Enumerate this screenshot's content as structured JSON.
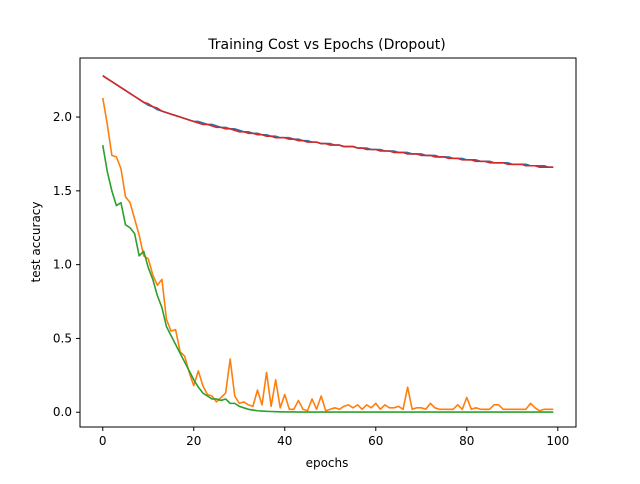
{
  "chart_data": {
    "type": "line",
    "title": "Training Cost vs Epochs (Dropout)",
    "xlabel": "epochs",
    "ylabel": "test accuracy",
    "xlim": [
      -5,
      104
    ],
    "ylim": [
      -0.1,
      2.4
    ],
    "xticks": [
      0,
      20,
      40,
      60,
      80,
      100
    ],
    "yticks": [
      0.0,
      0.5,
      1.0,
      1.5,
      2.0
    ],
    "xtick_labels": [
      "0",
      "20",
      "40",
      "60",
      "80",
      "100"
    ],
    "ytick_labels": [
      "0.0",
      "0.5",
      "1.0",
      "1.5",
      "2.0"
    ],
    "grid": false,
    "legend": "none",
    "colors": [
      "#1f77b4",
      "#ff7f0e",
      "#2ca02c",
      "#d62728"
    ],
    "x": [
      0,
      1,
      2,
      3,
      4,
      5,
      6,
      7,
      8,
      9,
      10,
      11,
      12,
      13,
      14,
      15,
      16,
      17,
      18,
      19,
      20,
      21,
      22,
      23,
      24,
      25,
      26,
      27,
      28,
      29,
      30,
      31,
      32,
      33,
      34,
      35,
      36,
      37,
      38,
      39,
      40,
      41,
      42,
      43,
      44,
      45,
      46,
      47,
      48,
      49,
      50,
      51,
      52,
      53,
      54,
      55,
      56,
      57,
      58,
      59,
      60,
      61,
      62,
      63,
      64,
      65,
      66,
      67,
      68,
      69,
      70,
      71,
      72,
      73,
      74,
      75,
      76,
      77,
      78,
      79,
      80,
      81,
      82,
      83,
      84,
      85,
      86,
      87,
      88,
      89,
      90,
      91,
      92,
      93,
      94,
      95,
      96,
      97,
      98,
      99
    ],
    "series": [
      {
        "values": [
          2.28,
          2.26,
          2.24,
          2.22,
          2.2,
          2.18,
          2.16,
          2.14,
          2.12,
          2.1,
          2.08,
          2.07,
          2.05,
          2.04,
          2.03,
          2.02,
          2.01,
          2.0,
          1.99,
          1.98,
          1.97,
          1.97,
          1.96,
          1.95,
          1.95,
          1.94,
          1.93,
          1.93,
          1.92,
          1.92,
          1.91,
          1.9,
          1.9,
          1.89,
          1.89,
          1.88,
          1.88,
          1.87,
          1.87,
          1.86,
          1.86,
          1.86,
          1.85,
          1.85,
          1.84,
          1.84,
          1.83,
          1.83,
          1.82,
          1.82,
          1.82,
          1.81,
          1.81,
          1.8,
          1.8,
          1.8,
          1.79,
          1.79,
          1.79,
          1.78,
          1.78,
          1.78,
          1.77,
          1.77,
          1.77,
          1.76,
          1.76,
          1.76,
          1.75,
          1.75,
          1.75,
          1.74,
          1.74,
          1.74,
          1.73,
          1.73,
          1.73,
          1.72,
          1.72,
          1.72,
          1.71,
          1.71,
          1.71,
          1.7,
          1.7,
          1.7,
          1.69,
          1.69,
          1.69,
          1.69,
          1.68,
          1.68,
          1.68,
          1.68,
          1.67,
          1.67,
          1.67,
          1.67,
          1.66,
          1.66
        ]
      },
      {
        "values": [
          2.13,
          1.95,
          1.74,
          1.73,
          1.65,
          1.46,
          1.42,
          1.31,
          1.2,
          1.06,
          1.04,
          0.93,
          0.86,
          0.9,
          0.63,
          0.55,
          0.56,
          0.41,
          0.38,
          0.27,
          0.18,
          0.28,
          0.18,
          0.12,
          0.11,
          0.07,
          0.1,
          0.13,
          0.36,
          0.11,
          0.06,
          0.07,
          0.05,
          0.04,
          0.15,
          0.05,
          0.27,
          0.04,
          0.22,
          0.03,
          0.12,
          0.02,
          0.02,
          0.08,
          0.02,
          0.01,
          0.09,
          0.02,
          0.11,
          0.01,
          0.02,
          0.03,
          0.02,
          0.04,
          0.05,
          0.03,
          0.05,
          0.02,
          0.05,
          0.03,
          0.06,
          0.02,
          0.05,
          0.03,
          0.03,
          0.04,
          0.02,
          0.17,
          0.02,
          0.03,
          0.03,
          0.02,
          0.06,
          0.03,
          0.02,
          0.02,
          0.02,
          0.02,
          0.05,
          0.02,
          0.1,
          0.02,
          0.03,
          0.02,
          0.02,
          0.02,
          0.05,
          0.05,
          0.02,
          0.02,
          0.02,
          0.02,
          0.02,
          0.02,
          0.06,
          0.03,
          0.01,
          0.02,
          0.02,
          0.02
        ]
      },
      {
        "values": [
          1.81,
          1.63,
          1.5,
          1.4,
          1.42,
          1.27,
          1.25,
          1.21,
          1.06,
          1.09,
          0.98,
          0.9,
          0.79,
          0.71,
          0.58,
          0.52,
          0.46,
          0.4,
          0.34,
          0.28,
          0.22,
          0.17,
          0.13,
          0.11,
          0.09,
          0.09,
          0.08,
          0.09,
          0.06,
          0.06,
          0.04,
          0.03,
          0.02,
          0.015,
          0.01,
          0.008,
          0.006,
          0.005,
          0.004,
          0.003,
          0.002,
          0.002,
          0.002,
          0.001,
          0.001,
          0.001,
          0.001,
          0.001,
          0.001,
          0.001,
          0.001,
          0.001,
          0.001,
          0.001,
          0.001,
          0.001,
          0.001,
          0.001,
          0.001,
          0.001,
          0.001,
          0.001,
          0.001,
          0.001,
          0.001,
          0.001,
          0.001,
          0.001,
          0.001,
          0.001,
          0.001,
          0.001,
          0.001,
          0.001,
          0.001,
          0.001,
          0.001,
          0.001,
          0.001,
          0.001,
          0.001,
          0.001,
          0.001,
          0.001,
          0.001,
          0.001,
          0.001,
          0.001,
          0.001,
          0.001,
          0.001,
          0.001,
          0.001,
          0.001,
          0.001,
          0.001,
          0.001,
          0.001,
          0.001,
          0.001
        ]
      },
      {
        "values": [
          2.28,
          2.26,
          2.24,
          2.22,
          2.2,
          2.18,
          2.16,
          2.14,
          2.12,
          2.1,
          2.09,
          2.07,
          2.06,
          2.04,
          2.03,
          2.02,
          2.01,
          2.0,
          1.99,
          1.98,
          1.97,
          1.96,
          1.95,
          1.95,
          1.94,
          1.93,
          1.93,
          1.92,
          1.92,
          1.91,
          1.9,
          1.9,
          1.89,
          1.89,
          1.88,
          1.88,
          1.87,
          1.87,
          1.86,
          1.86,
          1.86,
          1.85,
          1.85,
          1.84,
          1.84,
          1.83,
          1.83,
          1.83,
          1.82,
          1.82,
          1.81,
          1.81,
          1.81,
          1.8,
          1.8,
          1.8,
          1.79,
          1.79,
          1.78,
          1.78,
          1.78,
          1.77,
          1.77,
          1.77,
          1.76,
          1.76,
          1.76,
          1.75,
          1.75,
          1.75,
          1.74,
          1.74,
          1.74,
          1.73,
          1.73,
          1.73,
          1.72,
          1.72,
          1.72,
          1.71,
          1.71,
          1.71,
          1.7,
          1.7,
          1.7,
          1.69,
          1.69,
          1.69,
          1.69,
          1.68,
          1.68,
          1.68,
          1.68,
          1.67,
          1.67,
          1.67,
          1.66,
          1.66,
          1.66,
          1.66
        ]
      }
    ]
  }
}
